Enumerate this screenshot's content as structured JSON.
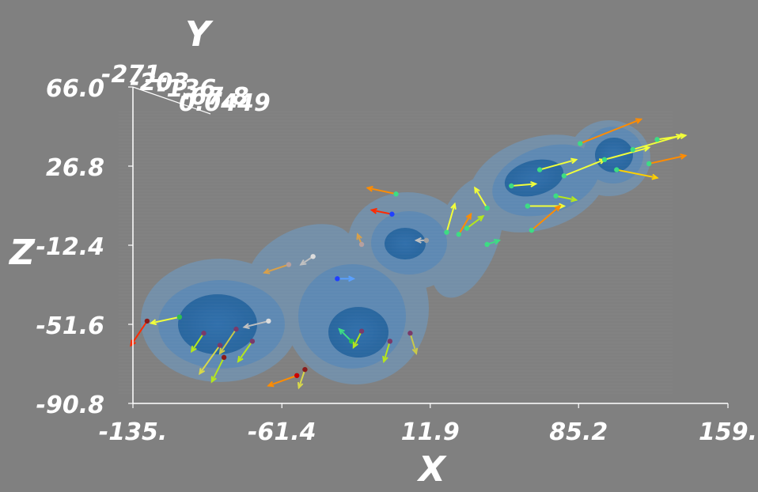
{
  "chart_data": {
    "type": "scatter",
    "subtype": "3d-volume-with-vector-field",
    "title": "",
    "axes": {
      "x": {
        "label": "X",
        "ticks": [
          {
            "value": -135.0,
            "label": "-135."
          },
          {
            "value": -61.4,
            "label": "-61.4"
          },
          {
            "value": 11.9,
            "label": "11.9"
          },
          {
            "value": 85.2,
            "label": "85.2"
          },
          {
            "value": 159.0,
            "label": "159."
          }
        ]
      },
      "z": {
        "label": "Z",
        "ticks": [
          {
            "value": 66.0,
            "label": "66.0"
          },
          {
            "value": 26.8,
            "label": "26.8"
          },
          {
            "value": -12.4,
            "label": "-12.4"
          },
          {
            "value": -51.6,
            "label": "-51.6"
          },
          {
            "value": -90.8,
            "label": "-90.8"
          }
        ]
      },
      "y": {
        "label": "Y",
        "ticks": [
          {
            "label": "-271."
          },
          {
            "label": "-203."
          },
          {
            "label": "-136."
          },
          {
            "label": "-67.8"
          },
          {
            "label": "0.0449"
          }
        ]
      }
    },
    "colors": {
      "background": "#808080",
      "isosurface_outer": "#6a9cc8",
      "isosurface_inner": "#1f5f9a",
      "axis": "#ffffff",
      "arrow_palette": [
        "#ff2a00",
        "#ff8c00",
        "#ffd000",
        "#f2ff3a",
        "#b5e61d",
        "#3ddc84",
        "#5aa0ff",
        "#c0c0c0"
      ]
    },
    "grid": false,
    "legend": "none",
    "vectors": [
      {
        "x": -128,
        "z": -50,
        "dx": -8,
        "dz": -12,
        "color": "#ff2a00",
        "point_color": "#8b1a1a"
      },
      {
        "x": -112,
        "z": -48,
        "dx": -14,
        "dz": -3,
        "color": "#f2ff3a",
        "point_color": "#2fbf4f"
      },
      {
        "x": -100,
        "z": -56,
        "dx": -6,
        "dz": -9,
        "color": "#b5e61d",
        "point_color": "#7a3a6a"
      },
      {
        "x": -92,
        "z": -62,
        "dx": -10,
        "dz": -14,
        "color": "#d8d84a",
        "point_color": "#7a3a6a"
      },
      {
        "x": -84,
        "z": -54,
        "dx": -8,
        "dz": -12,
        "color": "#c9c94a",
        "point_color": "#7a3a6a"
      },
      {
        "x": -76,
        "z": -60,
        "dx": -7,
        "dz": -10,
        "color": "#b5e61d",
        "point_color": "#7a3a6a"
      },
      {
        "x": -68,
        "z": -50,
        "dx": -12,
        "dz": -3,
        "color": "#c0c0c0",
        "point_color": "#dddddd"
      },
      {
        "x": -90,
        "z": -68,
        "dx": -6,
        "dz": -12,
        "color": "#b5e61d",
        "point_color": "#8b1a1a"
      },
      {
        "x": -54,
        "z": -77,
        "dx": -14,
        "dz": -5,
        "color": "#ff8c00",
        "point_color": "#cc0000"
      },
      {
        "x": -50,
        "z": -74,
        "dx": -3,
        "dz": -9,
        "color": "#d8d84a",
        "point_color": "#8b1a1a"
      },
      {
        "x": -58,
        "z": -22,
        "dx": -12,
        "dz": -4,
        "color": "#d8a04a",
        "point_color": "#b5a0a0"
      },
      {
        "x": -46,
        "z": -18,
        "dx": -6,
        "dz": -4,
        "color": "#c0c0c0",
        "point_color": "#dddddd"
      },
      {
        "x": -34,
        "z": -29,
        "dx": 8,
        "dz": 0,
        "color": "#5aa0ff",
        "point_color": "#2040ff"
      },
      {
        "x": -27,
        "z": -60,
        "dx": -6,
        "dz": 6,
        "color": "#3ddc84",
        "point_color": "#2fbf4f"
      },
      {
        "x": -22,
        "z": -55,
        "dx": -4,
        "dz": -8,
        "color": "#b5e61d",
        "point_color": "#7a3a6a"
      },
      {
        "x": -8,
        "z": -60,
        "dx": -3,
        "dz": -10,
        "color": "#b5e61d",
        "point_color": "#7a3a6a"
      },
      {
        "x": 2,
        "z": -56,
        "dx": 3,
        "dz": -10,
        "color": "#c9c94a",
        "point_color": "#7a3a6a"
      },
      {
        "x": -22,
        "z": -12,
        "dx": -2,
        "dz": 5,
        "color": "#d8a04a",
        "point_color": "#b5a0a0"
      },
      {
        "x": -5,
        "z": 13,
        "dx": -14,
        "dz": 3,
        "color": "#ff8c00",
        "point_color": "#3ddc84"
      },
      {
        "x": -7,
        "z": 3,
        "dx": -10,
        "dz": 2,
        "color": "#ff2a00",
        "point_color": "#2040ff"
      },
      {
        "x": 10,
        "z": -10,
        "dx": -5,
        "dz": 0,
        "color": "#c0c0c0",
        "point_color": "#a0a0a0"
      },
      {
        "x": 20,
        "z": -6,
        "dx": 4,
        "dz": 14,
        "color": "#f2ff3a",
        "point_color": "#3ddc84"
      },
      {
        "x": 26,
        "z": -7,
        "dx": 6,
        "dz": 10,
        "color": "#ff8c00",
        "point_color": "#3ddc84"
      },
      {
        "x": 30,
        "z": -4,
        "dx": 8,
        "dz": 6,
        "color": "#b5e61d",
        "point_color": "#3ddc84"
      },
      {
        "x": 40,
        "z": -12,
        "dx": 6,
        "dz": 2,
        "color": "#3ddc84",
        "point_color": "#3ddc84"
      },
      {
        "x": 40,
        "z": 6,
        "dx": -6,
        "dz": 10,
        "color": "#f2ff3a",
        "point_color": "#3ddc84"
      },
      {
        "x": 52,
        "z": 17,
        "dx": 12,
        "dz": 1,
        "color": "#f2ff3a",
        "point_color": "#3ddc84"
      },
      {
        "x": 60,
        "z": 7,
        "dx": 18,
        "dz": 0,
        "color": "#f2ff3a",
        "point_color": "#3ddc84"
      },
      {
        "x": 62,
        "z": -5,
        "dx": 14,
        "dz": 12,
        "color": "#ff8c00",
        "point_color": "#3ddc84"
      },
      {
        "x": 66,
        "z": 25,
        "dx": 18,
        "dz": 5,
        "color": "#f2ff3a",
        "point_color": "#3ddc84"
      },
      {
        "x": 74,
        "z": 12,
        "dx": 10,
        "dz": -2,
        "color": "#b5e61d",
        "point_color": "#3ddc84"
      },
      {
        "x": 78,
        "z": 22,
        "dx": 20,
        "dz": 8,
        "color": "#f2ff3a",
        "point_color": "#3ddc84"
      },
      {
        "x": 86,
        "z": 38,
        "dx": 30,
        "dz": 12,
        "color": "#ff8c00",
        "point_color": "#3ddc84"
      },
      {
        "x": 98,
        "z": 30,
        "dx": 22,
        "dz": 6,
        "color": "#f2ff3a",
        "point_color": "#3ddc84"
      },
      {
        "x": 104,
        "z": 25,
        "dx": 20,
        "dz": -4,
        "color": "#ffd000",
        "point_color": "#3ddc84"
      },
      {
        "x": 112,
        "z": 35,
        "dx": 24,
        "dz": 7,
        "color": "#f2ff3a",
        "point_color": "#3ddc84"
      },
      {
        "x": 120,
        "z": 28,
        "dx": 18,
        "dz": 4,
        "color": "#ff8c00",
        "point_color": "#3ddc84"
      },
      {
        "x": 124,
        "z": 40,
        "dx": 14,
        "dz": 2,
        "color": "#f2ff3a",
        "point_color": "#3ddc84"
      }
    ]
  }
}
